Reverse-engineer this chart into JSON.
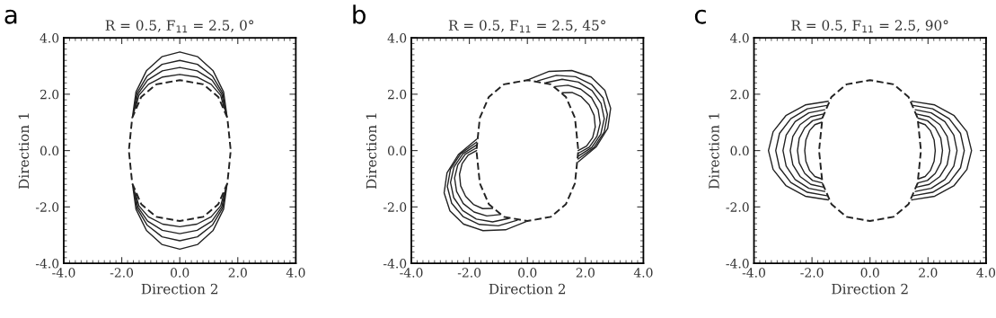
{
  "chart_data": [
    {
      "type": "line",
      "title": "R = 0.5, F$_{11}$ = 2.5, 0°",
      "xlabel": "Direction 2",
      "ylabel": "Direction 1",
      "annotations": [
        "a"
      ],
      "xlim": [
        -4,
        4
      ],
      "ylim": [
        -4,
        4
      ],
      "xticks": [
        {
          "value": -4,
          "label": "-4.0"
        },
        {
          "value": -2,
          "label": "-2.0"
        },
        {
          "value": 0,
          "label": "0.0"
        },
        {
          "value": 2,
          "label": "2.0"
        },
        {
          "value": 4,
          "label": "4.0"
        }
      ],
      "yticks": [
        {
          "value": -4,
          "label": "-4.0"
        },
        {
          "value": -2,
          "label": "-2.0"
        },
        {
          "value": 0,
          "label": "0.0"
        },
        {
          "value": 2,
          "label": "2.0"
        },
        {
          "value": 4,
          "label": "4.0"
        }
      ],
      "series": [
        {
          "color": "#222222",
          "line_style": "dashed",
          "x": [
            1.75,
            1.64,
            1.33,
            0.81,
            0,
            -0.81,
            -1.33,
            -1.64,
            -1.75
          ],
          "values": [
            0.06,
            1.16,
            1.9,
            2.35,
            2.5,
            2.35,
            1.9,
            1.16,
            0.06
          ]
        },
        {
          "color": "#222222",
          "line_style": "dashed",
          "x": [
            -1.75,
            -1.64,
            -1.33,
            -0.81,
            0,
            0.81,
            1.33,
            1.64,
            1.75
          ],
          "values": [
            -0.06,
            -1.16,
            -1.9,
            -2.35,
            -2.5,
            -2.35,
            -1.9,
            -1.16,
            -0.06
          ]
        },
        {
          "color": "#222222",
          "line_style": "solid",
          "x": [
            1.53,
            1.41,
            1.08,
            0.59,
            0,
            -0.59,
            -1.08,
            -1.41,
            -1.53
          ],
          "values": [
            1.5,
            1.96,
            2.35,
            2.61,
            2.7,
            2.61,
            2.35,
            1.96,
            1.5
          ]
        },
        {
          "color": "#222222",
          "line_style": "solid",
          "x": [
            1.57,
            1.45,
            1.11,
            0.6,
            0,
            -0.6,
            -1.11,
            -1.45,
            -1.57
          ],
          "values": [
            1.4,
            1.99,
            2.5,
            2.83,
            2.95,
            2.83,
            2.5,
            1.99,
            1.4
          ]
        },
        {
          "color": "#222222",
          "line_style": "solid",
          "x": [
            1.6,
            1.48,
            1.13,
            0.61,
            0,
            -0.61,
            -1.13,
            -1.48,
            -1.6
          ],
          "values": [
            1.3,
            2.03,
            2.64,
            3.06,
            3.2,
            3.06,
            2.64,
            2.03,
            1.3
          ]
        },
        {
          "color": "#222222",
          "line_style": "solid",
          "x": [
            1.63,
            1.51,
            1.15,
            0.62,
            0,
            -0.62,
            -1.15,
            -1.51,
            -1.63
          ],
          "values": [
            1.2,
            2.08,
            2.83,
            3.33,
            3.5,
            3.33,
            2.83,
            2.08,
            1.2
          ]
        },
        {
          "color": "#222222",
          "line_style": "solid",
          "x": [
            1.53,
            1.41,
            1.08,
            0.59,
            0,
            -0.59,
            -1.08,
            -1.41,
            -1.53
          ],
          "values": [
            -1.5,
            -1.96,
            -2.35,
            -2.61,
            -2.7,
            -2.61,
            -2.35,
            -1.96,
            -1.5
          ]
        },
        {
          "color": "#222222",
          "line_style": "solid",
          "x": [
            1.57,
            1.45,
            1.11,
            0.6,
            0,
            -0.6,
            -1.11,
            -1.45,
            -1.57
          ],
          "values": [
            -1.4,
            -1.99,
            -2.5,
            -2.83,
            -2.95,
            -2.83,
            -2.5,
            -1.99,
            -1.4
          ]
        },
        {
          "color": "#222222",
          "line_style": "solid",
          "x": [
            1.6,
            1.48,
            1.13,
            0.61,
            0,
            -0.61,
            -1.13,
            -1.48,
            -1.6
          ],
          "values": [
            -1.3,
            -2.03,
            -2.64,
            -3.06,
            -3.2,
            -3.06,
            -2.64,
            -2.03,
            -1.3
          ]
        },
        {
          "color": "#222222",
          "line_style": "solid",
          "x": [
            1.63,
            1.51,
            1.15,
            0.62,
            0,
            -0.62,
            -1.15,
            -1.51,
            -1.63
          ],
          "values": [
            -1.2,
            -2.08,
            -2.83,
            -3.33,
            -3.5,
            -3.33,
            -2.83,
            -2.08,
            -1.2
          ]
        }
      ]
    },
    {
      "type": "line",
      "title": "R = 0.5, F$_{11}$ = 2.5, 45°",
      "xlabel": "Direction 2",
      "ylabel": "Direction 1",
      "annotations": [
        "b"
      ],
      "xlim": [
        -4,
        4
      ],
      "ylim": [
        -4,
        4
      ],
      "xticks": [
        {
          "value": -4,
          "label": "-4.0"
        },
        {
          "value": -2,
          "label": "-2.0"
        },
        {
          "value": 0,
          "label": "0.0"
        },
        {
          "value": 2,
          "label": "2.0"
        },
        {
          "value": 4,
          "label": "4.0"
        }
      ],
      "yticks": [
        {
          "value": -4,
          "label": "-4.0"
        },
        {
          "value": -2,
          "label": "-2.0"
        },
        {
          "value": 0,
          "label": "0.0"
        },
        {
          "value": 2,
          "label": "2.0"
        },
        {
          "value": 4,
          "label": "4.0"
        }
      ],
      "series": [
        {
          "color": "#222222",
          "line_style": "dashed",
          "x": [
            1.75,
            1.64,
            1.33,
            0.81,
            0,
            -0.81,
            -1.33,
            -1.64,
            -1.75
          ],
          "values": [
            0.06,
            1.16,
            1.9,
            2.35,
            2.5,
            2.35,
            1.9,
            1.16,
            0.06
          ]
        },
        {
          "color": "#222222",
          "line_style": "dashed",
          "x": [
            -1.75,
            -1.64,
            -1.33,
            -0.81,
            0,
            0.81,
            1.33,
            1.64,
            1.75
          ],
          "values": [
            -0.06,
            -1.16,
            -1.9,
            -2.35,
            -2.5,
            -2.35,
            -1.9,
            -1.16,
            -0.06
          ]
        },
        {
          "color": "#222222",
          "line_style": "solid",
          "x": [
            0,
            0.75,
            1.53,
            2.2,
            2.67,
            2.87,
            2.77,
            2.37,
            1.75
          ],
          "values": [
            2.5,
            2.81,
            2.84,
            2.61,
            2.14,
            1.5,
            0.79,
            0.13,
            -0.4
          ]
        },
        {
          "color": "#222222",
          "line_style": "solid",
          "x": [
            0.35,
            1.0,
            1.66,
            2.22,
            2.61,
            2.76,
            2.65,
            2.3,
            1.75
          ],
          "values": [
            2.47,
            2.67,
            2.62,
            2.34,
            1.87,
            1.28,
            0.66,
            0.11,
            -0.3
          ]
        },
        {
          "color": "#222222",
          "line_style": "solid",
          "x": [
            0.65,
            1.2,
            1.76,
            2.23,
            2.54,
            2.65,
            2.53,
            2.22,
            1.75
          ],
          "values": [
            2.41,
            2.53,
            2.43,
            2.13,
            1.67,
            1.13,
            0.58,
            0.11,
            -0.2
          ]
        },
        {
          "color": "#222222",
          "line_style": "solid",
          "x": [
            0.95,
            1.4,
            1.84,
            2.21,
            2.44,
            2.51,
            2.4,
            2.14,
            1.75
          ],
          "values": [
            2.27,
            2.32,
            2.18,
            1.88,
            1.45,
            0.97,
            0.51,
            0.13,
            -0.1
          ]
        },
        {
          "color": "#222222",
          "line_style": "solid",
          "x": [
            1.2,
            1.54,
            1.86,
            2.13,
            2.3,
            2.34,
            2.25,
            2.04,
            1.75
          ],
          "values": [
            2.05,
            2.06,
            1.91,
            1.62,
            1.25,
            0.84,
            0.46,
            0.16,
            0
          ]
        },
        {
          "color": "#222222",
          "line_style": "solid",
          "x": [
            0,
            -0.75,
            -1.53,
            -2.2,
            -2.67,
            -2.87,
            -2.77,
            -2.37,
            -1.75
          ],
          "values": [
            -2.5,
            -2.81,
            -2.84,
            -2.61,
            -2.14,
            -1.5,
            -0.79,
            -0.13,
            0.4
          ]
        },
        {
          "color": "#222222",
          "line_style": "solid",
          "x": [
            -0.35,
            -1.0,
            -1.66,
            -2.22,
            -2.61,
            -2.76,
            -2.65,
            -2.3,
            -1.75
          ],
          "values": [
            -2.47,
            -2.67,
            -2.62,
            -2.34,
            -1.87,
            -1.28,
            -0.66,
            -0.11,
            0.3
          ]
        },
        {
          "color": "#222222",
          "line_style": "solid",
          "x": [
            -0.65,
            -1.2,
            -1.76,
            -2.23,
            -2.54,
            -2.65,
            -2.53,
            -2.22,
            -1.75
          ],
          "values": [
            -2.41,
            -2.53,
            -2.43,
            -2.13,
            -1.67,
            -1.13,
            -0.58,
            -0.11,
            0.2
          ]
        },
        {
          "color": "#222222",
          "line_style": "solid",
          "x": [
            -0.95,
            -1.4,
            -1.84,
            -2.21,
            -2.44,
            -2.51,
            -2.4,
            -2.14,
            -1.75
          ],
          "values": [
            -2.27,
            -2.32,
            -2.18,
            -1.88,
            -1.45,
            -0.97,
            -0.51,
            -0.13,
            0.1
          ]
        },
        {
          "color": "#222222",
          "line_style": "solid",
          "x": [
            -1.2,
            -1.54,
            -1.86,
            -2.13,
            -2.3,
            -2.34,
            -2.25,
            -2.04,
            -1.75
          ],
          "values": [
            -2.05,
            -2.06,
            -1.91,
            -1.62,
            -1.25,
            -0.84,
            -0.46,
            -0.16,
            0
          ]
        }
      ]
    },
    {
      "type": "line",
      "title": "R = 0.5, F$_{11}$ = 2.5, 90°",
      "xlabel": "Direction 2",
      "ylabel": "Direction 1",
      "annotations": [
        "c"
      ],
      "xlim": [
        -4,
        4
      ],
      "ylim": [
        -4,
        4
      ],
      "xticks": [
        {
          "value": -4,
          "label": "-4.0"
        },
        {
          "value": -2,
          "label": "-2.0"
        },
        {
          "value": 0,
          "label": "0.0"
        },
        {
          "value": 2,
          "label": "2.0"
        },
        {
          "value": 4,
          "label": "4.0"
        }
      ],
      "yticks": [
        {
          "value": -4,
          "label": "-4.0"
        },
        {
          "value": -2,
          "label": "-2.0"
        },
        {
          "value": 0,
          "label": "0.0"
        },
        {
          "value": 2,
          "label": "2.0"
        },
        {
          "value": 4,
          "label": "4.0"
        }
      ],
      "series": [
        {
          "color": "#222222",
          "line_style": "dashed",
          "x": [
            1.75,
            1.64,
            1.33,
            0.81,
            0,
            -0.81,
            -1.33,
            -1.64,
            -1.75
          ],
          "values": [
            0.06,
            1.16,
            1.9,
            2.35,
            2.5,
            2.35,
            1.9,
            1.16,
            0.06
          ]
        },
        {
          "color": "#222222",
          "line_style": "dashed",
          "x": [
            -1.75,
            -1.64,
            -1.33,
            -0.81,
            0,
            0.81,
            1.33,
            1.64,
            1.75
          ],
          "values": [
            -0.06,
            -1.16,
            -1.9,
            -2.35,
            -2.5,
            -2.35,
            -1.9,
            -1.16,
            -0.06
          ]
        },
        {
          "color": "#222222",
          "line_style": "solid",
          "x": [
            1.44,
            2.23,
            2.9,
            3.34,
            3.5,
            3.34,
            2.9,
            2.23,
            1.44
          ],
          "values": [
            1.75,
            1.62,
            1.24,
            0.67,
            0,
            -0.67,
            -1.24,
            -1.62,
            -1.75
          ]
        },
        {
          "color": "#222222",
          "line_style": "solid",
          "x": [
            1.49,
            2.16,
            2.73,
            3.12,
            3.25,
            3.12,
            2.73,
            2.16,
            1.49
          ],
          "values": [
            1.6,
            1.48,
            1.13,
            0.61,
            0,
            -0.61,
            -1.13,
            -1.48,
            -1.6
          ]
        },
        {
          "color": "#222222",
          "line_style": "solid",
          "x": [
            1.56,
            2.11,
            2.58,
            2.89,
            3.0,
            2.89,
            2.58,
            2.11,
            1.56
          ],
          "values": [
            1.45,
            1.34,
            1.03,
            0.55,
            0,
            -0.55,
            -1.03,
            -1.34,
            -1.45
          ]
        },
        {
          "color": "#222222",
          "line_style": "solid",
          "x": [
            1.6,
            2.04,
            2.41,
            2.66,
            2.75,
            2.66,
            2.41,
            2.04,
            1.6
          ],
          "values": [
            1.3,
            1.2,
            0.92,
            0.5,
            0,
            -0.5,
            -0.92,
            -1.2,
            -1.3
          ]
        },
        {
          "color": "#222222",
          "line_style": "solid",
          "x": [
            1.65,
            1.98,
            2.25,
            2.44,
            2.5,
            2.44,
            2.25,
            1.98,
            1.65
          ],
          "values": [
            1.15,
            1.06,
            0.81,
            0.44,
            0,
            -0.44,
            -0.81,
            -1.06,
            -1.15
          ]
        },
        {
          "color": "#222222",
          "line_style": "solid",
          "x": [
            1.68,
            1.9,
            2.08,
            2.21,
            2.25,
            2.21,
            2.08,
            1.9,
            1.68
          ],
          "values": [
            1.0,
            0.92,
            0.71,
            0.38,
            0,
            -0.38,
            -0.71,
            -0.92,
            -1.0
          ]
        },
        {
          "color": "#222222",
          "line_style": "solid",
          "x": [
            -1.44,
            -2.23,
            -2.9,
            -3.34,
            -3.5,
            -3.34,
            -2.9,
            -2.23,
            -1.44
          ],
          "values": [
            1.75,
            1.62,
            1.24,
            0.67,
            0,
            -0.67,
            -1.24,
            -1.62,
            -1.75
          ]
        },
        {
          "color": "#222222",
          "line_style": "solid",
          "x": [
            -1.49,
            -2.16,
            -2.73,
            -3.12,
            -3.25,
            -3.12,
            -2.73,
            -2.16,
            -1.49
          ],
          "values": [
            1.6,
            1.48,
            1.13,
            0.61,
            0,
            -0.61,
            -1.13,
            -1.48,
            -1.6
          ]
        },
        {
          "color": "#222222",
          "line_style": "solid",
          "x": [
            -1.56,
            -2.11,
            -2.58,
            -2.89,
            -3.0,
            -2.89,
            -2.58,
            -2.11,
            -1.56
          ],
          "values": [
            1.45,
            1.34,
            1.03,
            0.55,
            0,
            -0.55,
            -1.03,
            -1.34,
            -1.45
          ]
        },
        {
          "color": "#222222",
          "line_style": "solid",
          "x": [
            -1.6,
            -2.04,
            -2.41,
            -2.66,
            -2.75,
            -2.66,
            -2.41,
            -2.04,
            -1.6
          ],
          "values": [
            1.3,
            1.2,
            0.92,
            0.5,
            0,
            -0.5,
            -0.92,
            -1.2,
            -1.3
          ]
        },
        {
          "color": "#222222",
          "line_style": "solid",
          "x": [
            -1.65,
            -1.98,
            -2.25,
            -2.44,
            -2.5,
            -2.44,
            -2.25,
            -1.98,
            -1.65
          ],
          "values": [
            1.15,
            1.06,
            0.81,
            0.44,
            0,
            -0.44,
            -0.81,
            -1.06,
            -1.15
          ]
        },
        {
          "color": "#222222",
          "line_style": "solid",
          "x": [
            -1.68,
            -1.9,
            -2.08,
            -2.21,
            -2.25,
            -2.21,
            -2.08,
            -1.9,
            -1.68
          ],
          "values": [
            1.0,
            0.92,
            0.71,
            0.38,
            0,
            -0.38,
            -0.71,
            -0.92,
            -1.0
          ]
        }
      ]
    }
  ]
}
